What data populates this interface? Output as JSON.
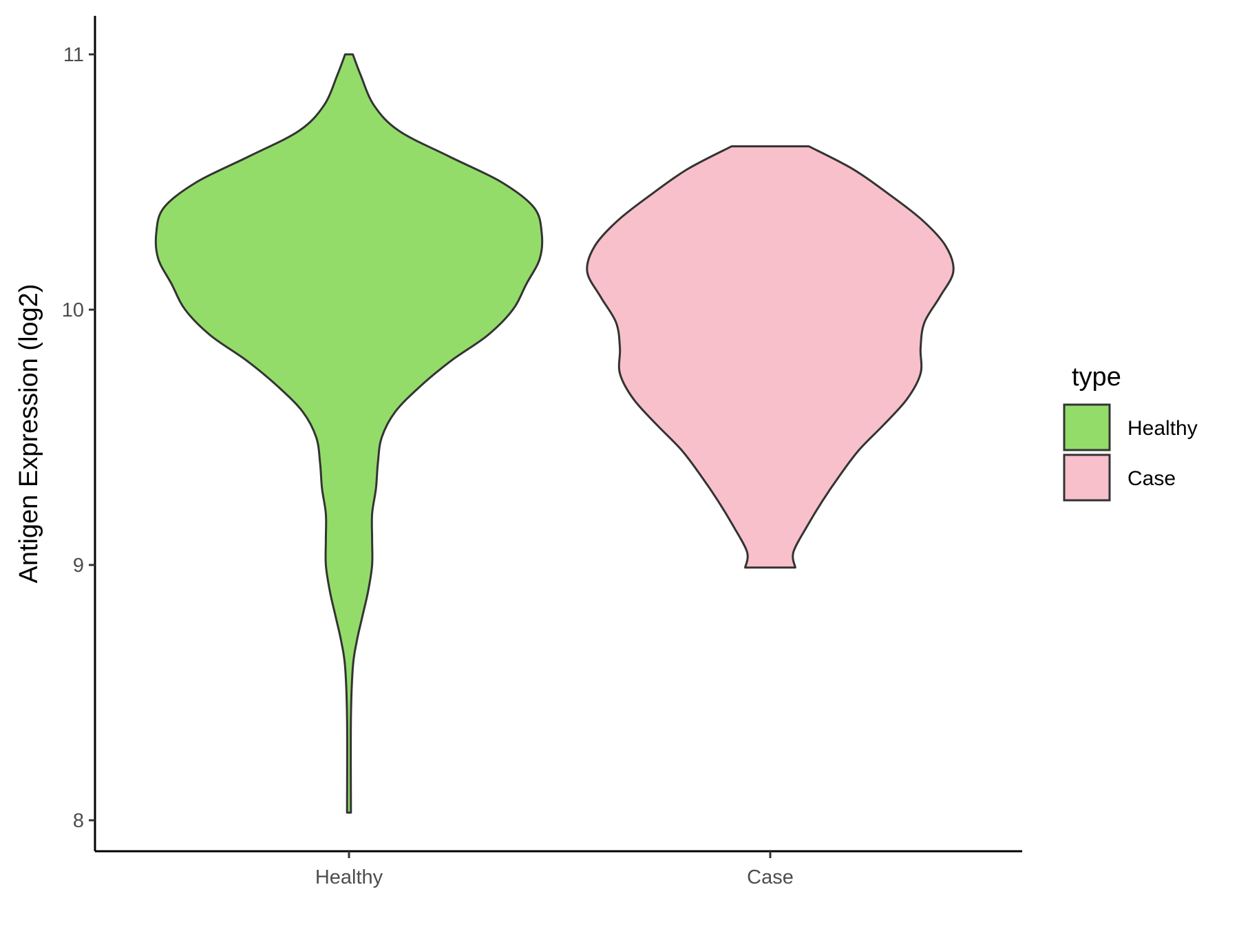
{
  "chart_data": {
    "type": "violin",
    "ylabel": "Antigen Expression (log2)",
    "xlabel": "",
    "ylim": [
      7.88,
      11.15
    ],
    "yticks": [
      8,
      9,
      10,
      11
    ],
    "categories": [
      "Healthy",
      "Case"
    ],
    "legend": {
      "title": "type",
      "position": "right",
      "items": [
        {
          "label": "Healthy",
          "color": "#93DC6A"
        },
        {
          "label": "Case",
          "color": "#F7C0CB"
        }
      ]
    },
    "series": [
      {
        "category": "Healthy",
        "color": "#93DC6A",
        "min": 8.03,
        "max": 11.0,
        "density": [
          [
            11.0,
            0.02
          ],
          [
            10.92,
            0.06
          ],
          [
            10.8,
            0.13
          ],
          [
            10.7,
            0.26
          ],
          [
            10.6,
            0.52
          ],
          [
            10.5,
            0.79
          ],
          [
            10.4,
            0.96
          ],
          [
            10.3,
            1.0
          ],
          [
            10.2,
            0.99
          ],
          [
            10.1,
            0.92
          ],
          [
            10.0,
            0.85
          ],
          [
            9.9,
            0.72
          ],
          [
            9.8,
            0.53
          ],
          [
            9.7,
            0.37
          ],
          [
            9.6,
            0.24
          ],
          [
            9.5,
            0.17
          ],
          [
            9.4,
            0.15
          ],
          [
            9.3,
            0.14
          ],
          [
            9.2,
            0.12
          ],
          [
            9.1,
            0.12
          ],
          [
            9.0,
            0.12
          ],
          [
            8.9,
            0.1
          ],
          [
            8.8,
            0.07
          ],
          [
            8.7,
            0.04
          ],
          [
            8.6,
            0.02
          ],
          [
            8.4,
            0.01
          ],
          [
            8.03,
            0.01
          ]
        ]
      },
      {
        "category": "Case",
        "color": "#F7C0CB",
        "min": 8.99,
        "max": 10.64,
        "density": [
          [
            10.64,
            0.2
          ],
          [
            10.55,
            0.43
          ],
          [
            10.45,
            0.62
          ],
          [
            10.35,
            0.79
          ],
          [
            10.25,
            0.91
          ],
          [
            10.15,
            0.95
          ],
          [
            10.05,
            0.88
          ],
          [
            9.95,
            0.8
          ],
          [
            9.85,
            0.78
          ],
          [
            9.75,
            0.78
          ],
          [
            9.65,
            0.71
          ],
          [
            9.55,
            0.59
          ],
          [
            9.45,
            0.46
          ],
          [
            9.35,
            0.36
          ],
          [
            9.25,
            0.27
          ],
          [
            9.15,
            0.19
          ],
          [
            9.05,
            0.12
          ],
          [
            8.99,
            0.13
          ]
        ]
      }
    ]
  }
}
